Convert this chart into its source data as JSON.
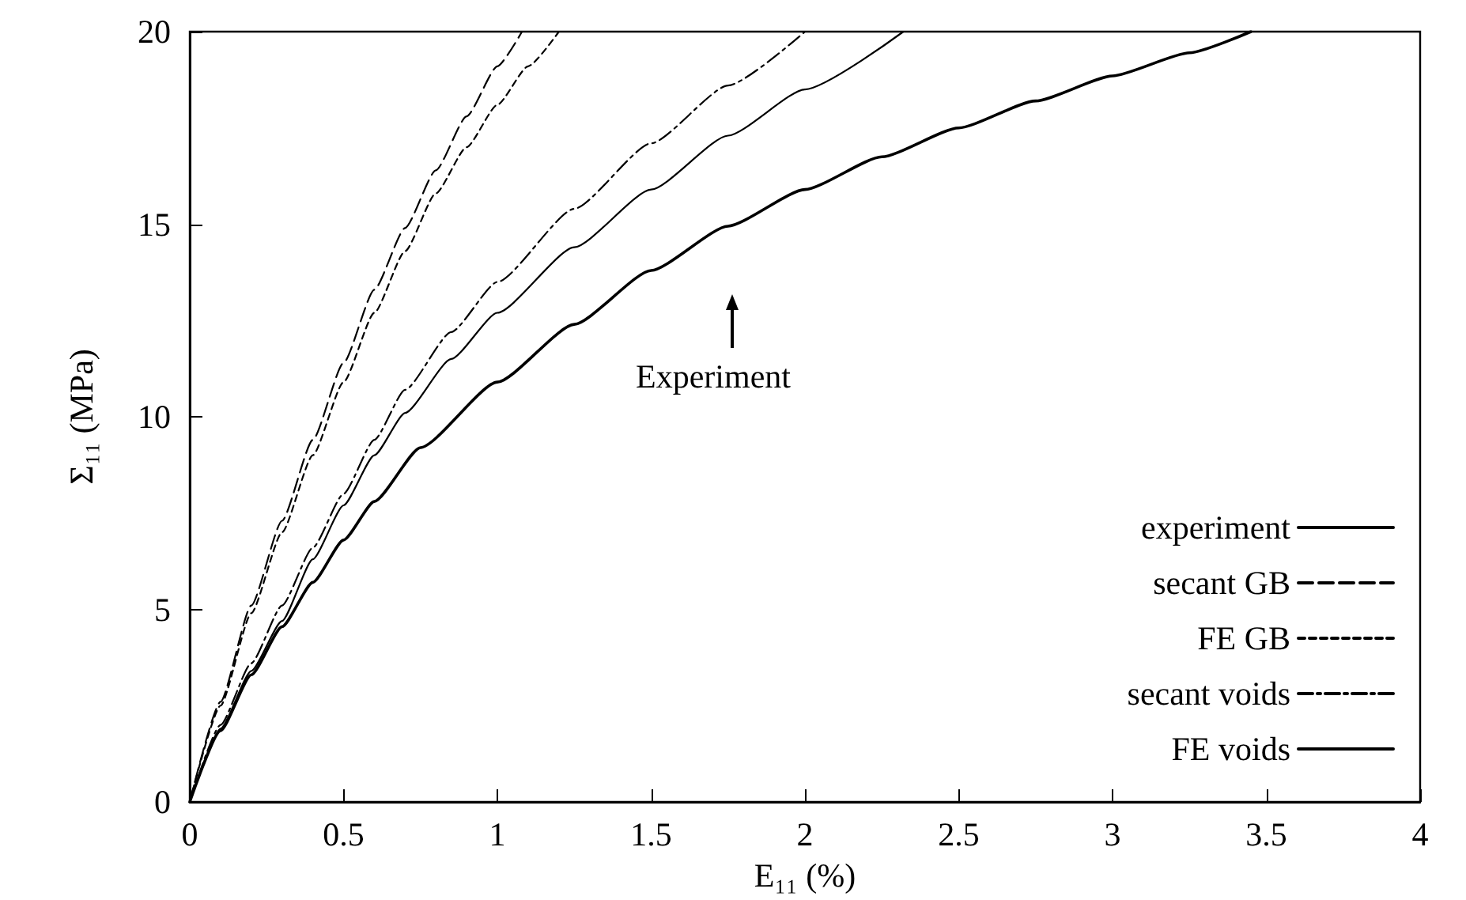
{
  "chart_data": {
    "type": "line",
    "xlabel": "E₁₁ (%)",
    "ylabel": "Σ₁₁ (MPa)",
    "xlim": [
      0,
      4
    ],
    "xticks": [
      0,
      0.5,
      1,
      1.5,
      2,
      2.5,
      3,
      3.5,
      4
    ],
    "ylim": [
      0,
      20
    ],
    "yticks": [
      0,
      5,
      10,
      15,
      20
    ],
    "grid": false,
    "legend": "bottom right",
    "marker": "none",
    "annotations": [
      "Experiment"
    ],
    "series": [
      {
        "name": "experiment",
        "color": "#000000",
        "line_style": "solid",
        "x": [
          0,
          0.1,
          0.2,
          0.3,
          0.4,
          0.5,
          0.6,
          0.75,
          1,
          1.25,
          1.5,
          1.75,
          2,
          2.25,
          2.5,
          2.75,
          3,
          3.25,
          3.45
        ],
        "values": [
          0,
          1.85,
          3.3,
          4.55,
          5.7,
          6.8,
          7.8,
          9.2,
          10.9,
          12.4,
          13.8,
          14.95,
          15.9,
          16.75,
          17.5,
          18.2,
          18.85,
          19.45,
          20
        ]
      },
      {
        "name": "secant GB",
        "color": "#000000",
        "line_style": "dashed",
        "x": [
          0,
          0.1,
          0.2,
          0.3,
          0.4,
          0.5,
          0.6,
          0.7,
          0.8,
          0.9,
          1,
          1.08
        ],
        "values": [
          0,
          2.6,
          5.1,
          7.3,
          9.4,
          11.4,
          13.3,
          14.9,
          16.4,
          17.8,
          19.1,
          20
        ]
      },
      {
        "name": "FE GB",
        "color": "#000000",
        "line_style": "dotted",
        "x": [
          0,
          0.1,
          0.2,
          0.3,
          0.4,
          0.5,
          0.6,
          0.7,
          0.8,
          0.9,
          1,
          1.1,
          1.2
        ],
        "values": [
          0,
          2.5,
          4.9,
          7.0,
          9.0,
          10.9,
          12.7,
          14.3,
          15.8,
          17.0,
          18.1,
          19.1,
          20
        ]
      },
      {
        "name": "secant voids",
        "color": "#000000",
        "line_style": "dashdot",
        "x": [
          0,
          0.1,
          0.2,
          0.3,
          0.4,
          0.5,
          0.6,
          0.7,
          0.85,
          1,
          1.25,
          1.5,
          1.75,
          2
        ],
        "values": [
          0,
          2.0,
          3.6,
          5.1,
          6.6,
          8.0,
          9.4,
          10.7,
          12.2,
          13.5,
          15.4,
          17.1,
          18.6,
          20
        ]
      },
      {
        "name": "FE voids",
        "color": "#000000",
        "line_style": "solid",
        "x": [
          0,
          0.1,
          0.2,
          0.3,
          0.4,
          0.5,
          0.6,
          0.7,
          0.85,
          1,
          1.25,
          1.5,
          1.75,
          2,
          2.32
        ],
        "values": [
          0,
          1.9,
          3.4,
          4.7,
          6.3,
          7.7,
          9.0,
          10.1,
          11.5,
          12.7,
          14.4,
          15.9,
          17.3,
          18.5,
          20
        ]
      }
    ]
  }
}
